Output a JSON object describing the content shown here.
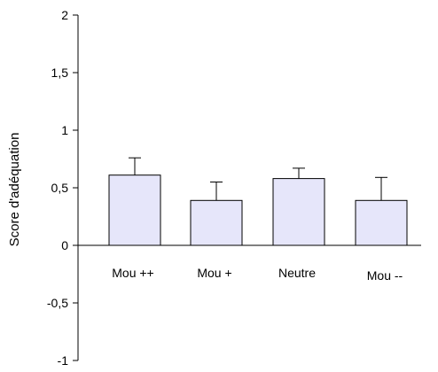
{
  "chart_data": {
    "type": "bar",
    "title": "",
    "xlabel": "",
    "ylabel": "Score d'adéquation",
    "categories": [
      "Mou ++",
      "Mou +",
      "Neutre",
      "Mou --"
    ],
    "values": [
      0.61,
      0.39,
      0.58,
      0.39
    ],
    "error_bars_upper": [
      0.15,
      0.16,
      0.09,
      0.2
    ],
    "ylim": [
      -1,
      2
    ],
    "yticks": [
      -1,
      -0.5,
      0,
      0.5,
      1,
      1.5,
      2
    ],
    "ytick_labels": [
      "-1",
      "-0,5",
      "0",
      "0,5",
      "1",
      "1,5",
      "2"
    ],
    "grid": false,
    "legend": "none",
    "bar_color": "#e6e6fa",
    "edge_color": "#000000"
  }
}
